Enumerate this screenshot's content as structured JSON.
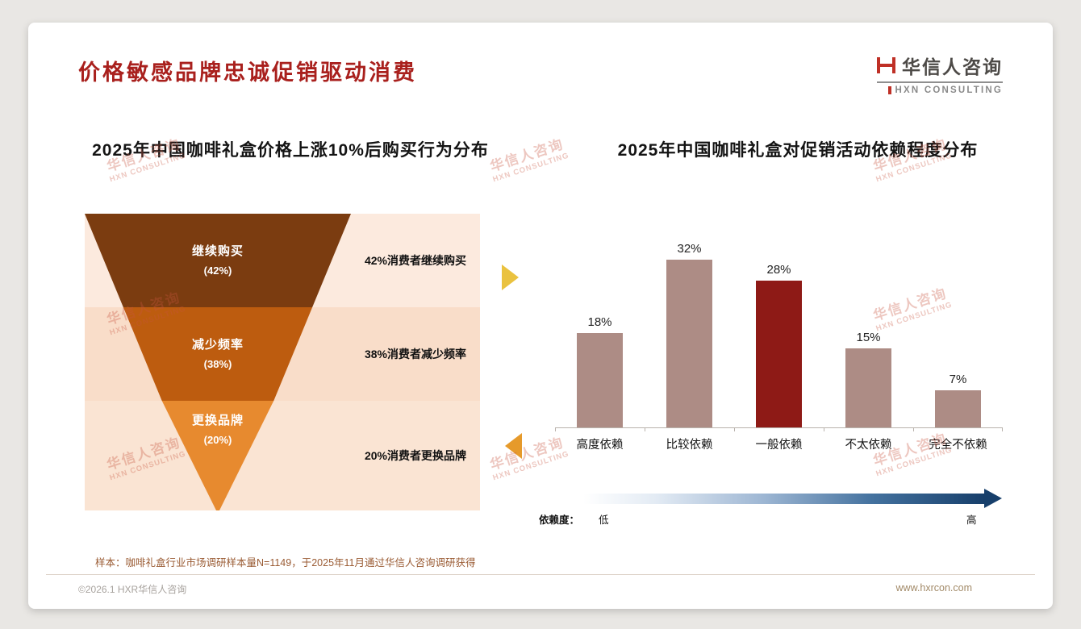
{
  "page": {
    "title": "价格敏感品牌忠诚促销驱动消费",
    "logo": {
      "name": "华信人咨询",
      "sub": "HXN CONSULTING"
    },
    "watermark": {
      "line1": "华信人咨询",
      "line2": "HXN CONSULTING"
    },
    "footnote": "样本：咖啡礼盒行业市场调研样本量N=1149，于2025年11月通过华信人咨询调研获得",
    "footer": {
      "copyright": "©2026.1 HXR华信人咨询",
      "website": "www.hxrcon.com"
    },
    "accent_color": "#a9201d"
  },
  "chart_data": [
    {
      "type": "funnel",
      "title": "2025年中国咖啡礼盒价格上涨10%后购买行为分布",
      "categories": [
        "继续购买",
        "减少频率",
        "更换品牌"
      ],
      "values": [
        42,
        38,
        20
      ],
      "pct_labels": [
        "(42%)",
        "(38%)",
        "(20%)"
      ],
      "annotations": [
        "42%消费者继续购买",
        "38%消费者减少频率",
        "20%消费者更换品牌"
      ],
      "colors": [
        "#7b3c10",
        "#bd5c0f",
        "#e78a2f"
      ],
      "row_backgrounds": [
        "#fceade",
        "#f9ddc9",
        "#fae4d3"
      ]
    },
    {
      "type": "bar",
      "title": "2025年中国咖啡礼盒对促销活动依赖程度分布",
      "categories": [
        "高度依赖",
        "比较依赖",
        "一般依赖",
        "不太依赖",
        "完全不依赖"
      ],
      "values": [
        18,
        32,
        28,
        15,
        7
      ],
      "value_labels": [
        "18%",
        "32%",
        "28%",
        "15%",
        "7%"
      ],
      "bar_colors": [
        "#ad8c85",
        "#ad8c85",
        "#8e1a16",
        "#ad8c85",
        "#ad8c85"
      ],
      "highlight_index": 2,
      "ylim": [
        0,
        35
      ],
      "grid": false,
      "legend_axis": {
        "label": "依赖度：",
        "low": "低",
        "high": "高"
      }
    }
  ]
}
